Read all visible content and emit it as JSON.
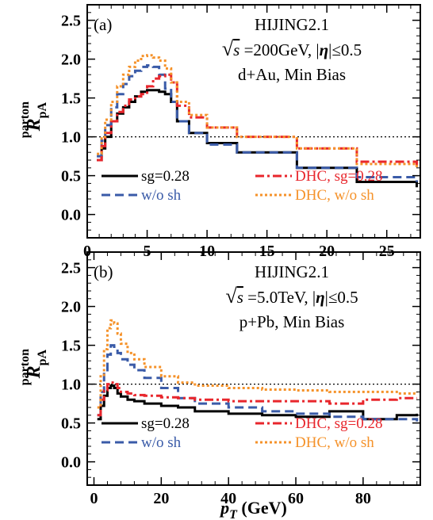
{
  "chart_data": [
    {
      "type": "line",
      "panel_label": "(a)",
      "annotation_lines": [
        "HIJING2.1",
        "=200GeV, |",
        "|≤0.5",
        "d+Au, Min Bias"
      ],
      "annotation_sqrt": "√",
      "annotation_s": "s",
      "annotation_eta": "η",
      "ylabel_main": "R",
      "ylabel_sup": "parton",
      "ylabel_sub": "pA",
      "xlim": [
        0,
        27.8
      ],
      "ylim": [
        -0.3,
        2.7
      ],
      "xticks": [
        "0",
        "5",
        "10",
        "15",
        "20",
        "25"
      ],
      "yticks": [
        "0.0",
        "0.5",
        "1.0",
        "1.5",
        "2.0",
        "2.5"
      ],
      "reference_line": 1.0,
      "series": [
        {
          "name": "sg=0.28",
          "color": "#000000",
          "style": "solid",
          "x": [
            0.8,
            1.2,
            1.5,
            2,
            2.5,
            3,
            3.5,
            4,
            4.5,
            5,
            5.5,
            6,
            6.5,
            7,
            7.5,
            8.5,
            10,
            12.5,
            17.5,
            22.5,
            27.5
          ],
          "y": [
            0.7,
            0.85,
            1.0,
            1.2,
            1.3,
            1.38,
            1.45,
            1.52,
            1.58,
            1.6,
            1.6,
            1.58,
            1.55,
            1.45,
            1.2,
            1.05,
            0.92,
            0.8,
            0.6,
            0.42,
            0.35
          ]
        },
        {
          "name": "w/o sh",
          "color": "#3a5ba8",
          "style": "dashed",
          "x": [
            0.8,
            1.2,
            1.5,
            2,
            2.5,
            3,
            3.5,
            4,
            4.5,
            5,
            5.5,
            6,
            6.5,
            7,
            7.5,
            8.5,
            10,
            12.5,
            17.5,
            22.5,
            27.5
          ],
          "y": [
            0.75,
            0.95,
            1.15,
            1.38,
            1.55,
            1.68,
            1.78,
            1.85,
            1.9,
            1.92,
            1.9,
            1.8,
            1.62,
            1.45,
            1.2,
            1.05,
            0.9,
            0.8,
            0.6,
            0.48,
            0.42
          ]
        },
        {
          "name": "DHC, sg=0.28",
          "color": "#e8262c",
          "style": "dashdot",
          "x": [
            0.8,
            1.2,
            1.5,
            2,
            2.5,
            3,
            3.5,
            4,
            4.5,
            5,
            5.5,
            6,
            6.5,
            7,
            7.5,
            8.5,
            10,
            12.5,
            17.5,
            22.5,
            27.5
          ],
          "y": [
            0.7,
            0.88,
            1.05,
            1.2,
            1.32,
            1.4,
            1.48,
            1.52,
            1.55,
            1.65,
            1.75,
            1.78,
            1.8,
            1.7,
            1.4,
            1.25,
            1.12,
            1.0,
            0.85,
            0.68,
            0.6
          ]
        },
        {
          "name": "DHC, w/o sh",
          "color": "#f5922a",
          "style": "dotted",
          "x": [
            0.8,
            1.2,
            1.5,
            2,
            2.5,
            3,
            3.5,
            4,
            4.5,
            5,
            5.5,
            6,
            6.5,
            7,
            7.5,
            8.5,
            10,
            12.5,
            17.5,
            22.5,
            27.5
          ],
          "y": [
            0.78,
            1.0,
            1.22,
            1.45,
            1.65,
            1.8,
            1.9,
            1.98,
            2.04,
            2.05,
            2.02,
            1.98,
            1.88,
            1.7,
            1.45,
            1.28,
            1.12,
            1.0,
            0.85,
            0.65,
            0.6
          ]
        }
      ]
    },
    {
      "type": "line",
      "panel_label": "(b)",
      "annotation_lines": [
        "HIJING2.1",
        "=5.0TeV, |",
        "|≤0.5",
        "p+Pb, Min Bias"
      ],
      "annotation_sqrt": "√",
      "annotation_s": "s",
      "annotation_eta": "η",
      "ylabel_main": "R",
      "ylabel_sup": "parton",
      "ylabel_sub": "pA",
      "xlabel_main": "p",
      "xlabel_sub": "T",
      "xlabel_unit": " (GeV)",
      "xlim": [
        -2,
        97
      ],
      "ylim": [
        -0.3,
        2.7
      ],
      "xticks": [
        "0",
        "20",
        "40",
        "60",
        "80"
      ],
      "yticks": [
        "0.0",
        "0.5",
        "1.0",
        "1.5",
        "2.0",
        "2.5"
      ],
      "reference_line": 1.0,
      "series": [
        {
          "name": "sg=0.28",
          "color": "#000000",
          "style": "solid",
          "x": [
            1,
            2,
            3,
            4,
            5,
            6,
            7,
            8,
            10,
            12,
            15,
            20,
            25,
            30,
            40,
            50,
            60,
            70,
            80,
            90,
            96
          ],
          "y": [
            0.55,
            0.72,
            0.85,
            0.95,
            0.98,
            0.95,
            0.88,
            0.84,
            0.8,
            0.78,
            0.75,
            0.72,
            0.7,
            0.65,
            0.62,
            0.6,
            0.58,
            0.65,
            0.55,
            0.6,
            0.62
          ]
        },
        {
          "name": "w/o sh",
          "color": "#3a5ba8",
          "style": "dashed",
          "x": [
            1,
            2,
            3,
            4,
            5,
            6,
            7,
            8,
            10,
            12,
            15,
            20,
            25,
            30,
            40,
            50,
            60,
            70,
            80,
            90,
            96
          ],
          "y": [
            0.6,
            0.9,
            1.15,
            1.38,
            1.5,
            1.48,
            1.4,
            1.32,
            1.25,
            1.18,
            1.08,
            0.95,
            0.82,
            0.75,
            0.7,
            0.65,
            0.62,
            0.58,
            0.55,
            0.55,
            0.52
          ]
        },
        {
          "name": "DHC, sg=0.28",
          "color": "#e8262c",
          "style": "dashdot",
          "x": [
            1,
            2,
            3,
            4,
            5,
            6,
            7,
            8,
            10,
            12,
            15,
            20,
            25,
            30,
            40,
            50,
            60,
            70,
            80,
            90,
            96
          ],
          "y": [
            0.6,
            0.8,
            0.92,
            1.0,
            1.02,
            1.0,
            0.95,
            0.9,
            0.88,
            0.86,
            0.85,
            0.83,
            0.82,
            0.8,
            0.78,
            0.78,
            0.78,
            0.75,
            0.8,
            0.82,
            0.82
          ]
        },
        {
          "name": "DHC, w/o sh",
          "color": "#f5922a",
          "style": "dotted",
          "x": [
            1,
            2,
            3,
            4,
            5,
            6,
            7,
            8,
            10,
            12,
            15,
            20,
            25,
            30,
            40,
            50,
            60,
            70,
            80,
            90,
            96
          ],
          "y": [
            0.7,
            1.1,
            1.45,
            1.72,
            1.82,
            1.78,
            1.65,
            1.52,
            1.4,
            1.32,
            1.22,
            1.1,
            1.02,
            0.98,
            0.95,
            0.93,
            0.92,
            0.9,
            0.9,
            0.88,
            0.9
          ]
        }
      ]
    }
  ]
}
